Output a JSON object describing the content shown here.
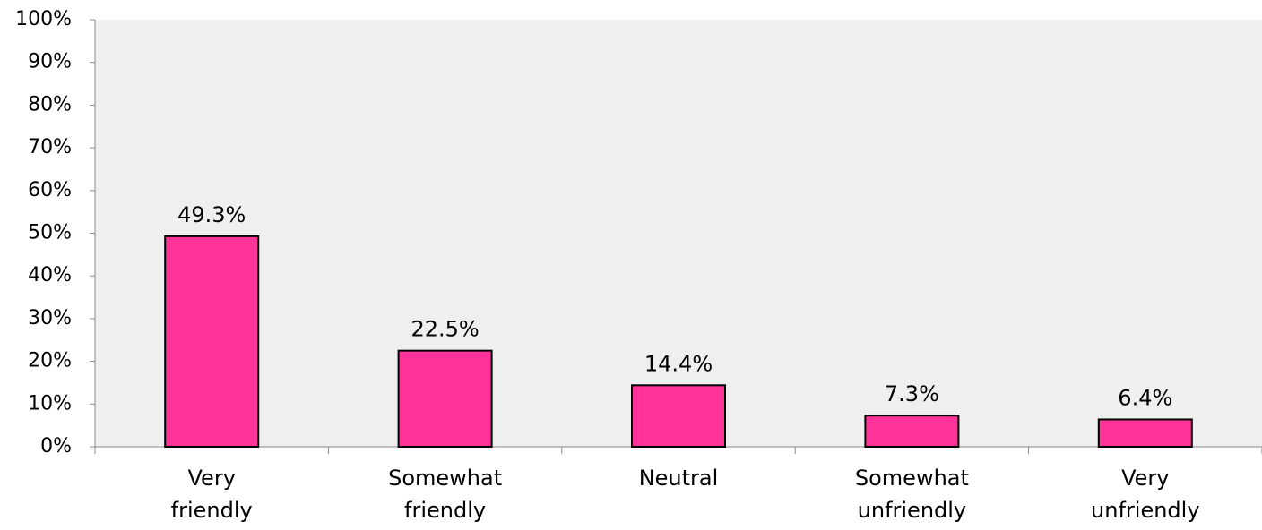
{
  "chart_data": {
    "type": "bar",
    "categories": [
      [
        "Very",
        "friendly"
      ],
      [
        "Somewhat",
        "friendly"
      ],
      [
        "Neutral"
      ],
      [
        "Somewhat",
        "unfriendly"
      ],
      [
        "Very",
        "unfriendly"
      ]
    ],
    "values": [
      49.3,
      22.5,
      14.4,
      7.3,
      6.4
    ],
    "data_labels": [
      "49.3%",
      "22.5%",
      "14.4%",
      "7.3%",
      "6.4%"
    ],
    "ylim": [
      0,
      100
    ],
    "y_ticks": [
      0,
      10,
      20,
      30,
      40,
      50,
      60,
      70,
      80,
      90,
      100
    ],
    "y_tick_labels": [
      "0%",
      "10%",
      "20%",
      "30%",
      "40%",
      "50%",
      "60%",
      "70%",
      "80%",
      "90%",
      "100%"
    ],
    "grid": false,
    "colors": {
      "plot_background": "#efefef",
      "bar_fill": "#ff3399",
      "bar_stroke": "#000000",
      "axis": "#888888"
    }
  }
}
